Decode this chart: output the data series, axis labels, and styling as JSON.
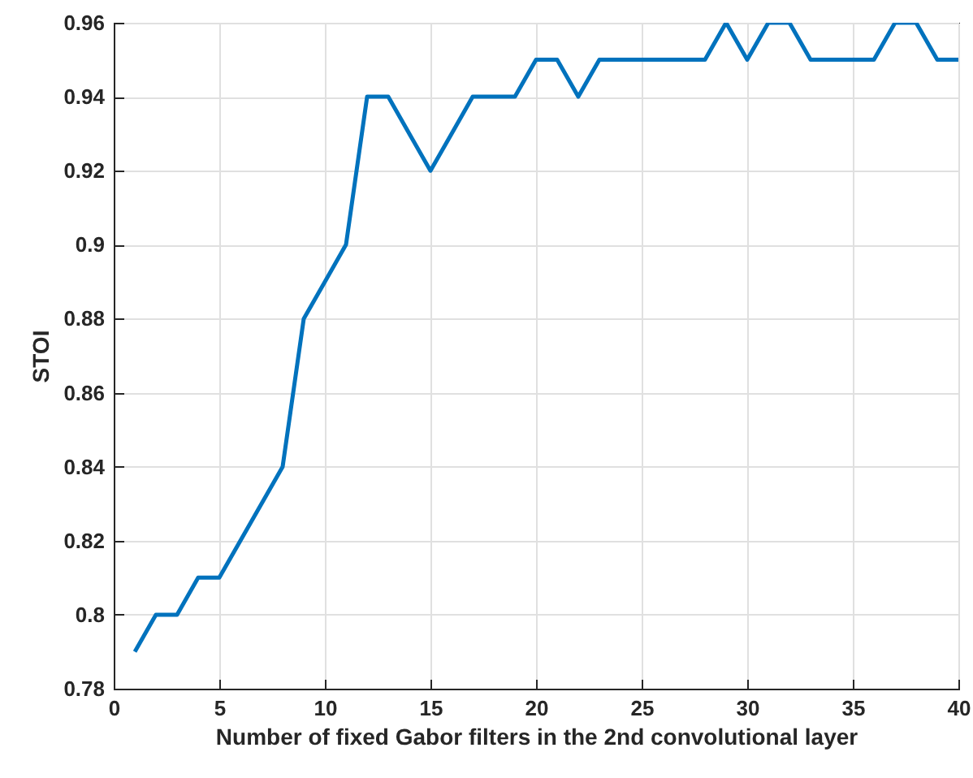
{
  "chart_data": {
    "type": "line",
    "xlabel": "Number of fixed Gabor filters in the 2nd convolutional layer",
    "ylabel": "STOI",
    "x": [
      1,
      2,
      3,
      4,
      5,
      6,
      7,
      8,
      9,
      10,
      11,
      12,
      13,
      14,
      15,
      16,
      17,
      18,
      19,
      20,
      21,
      22,
      23,
      24,
      25,
      26,
      27,
      28,
      29,
      30,
      31,
      32,
      33,
      34,
      35,
      36,
      37,
      38,
      39,
      40
    ],
    "series": [
      {
        "color": "#0072bd",
        "values": [
          0.79,
          0.8,
          0.8,
          0.81,
          0.81,
          0.82,
          0.83,
          0.84,
          0.88,
          0.89,
          0.9,
          0.94,
          0.94,
          0.93,
          0.92,
          0.93,
          0.94,
          0.94,
          0.94,
          0.95,
          0.95,
          0.94,
          0.95,
          0.95,
          0.95,
          0.95,
          0.95,
          0.95,
          0.96,
          0.95,
          0.96,
          0.96,
          0.95,
          0.95,
          0.95,
          0.95,
          0.96,
          0.96,
          0.95,
          0.95
        ]
      }
    ],
    "xlim": [
      0,
      40
    ],
    "xticks": [
      0,
      5,
      10,
      15,
      20,
      25,
      30,
      35,
      40
    ],
    "ylim": [
      0.78,
      0.96
    ],
    "yticks": [
      0.78,
      0.8,
      0.82,
      0.84,
      0.86,
      0.88,
      0.9,
      0.92,
      0.94,
      0.96
    ],
    "grid": true,
    "line_style": "solid",
    "marker": "none"
  }
}
